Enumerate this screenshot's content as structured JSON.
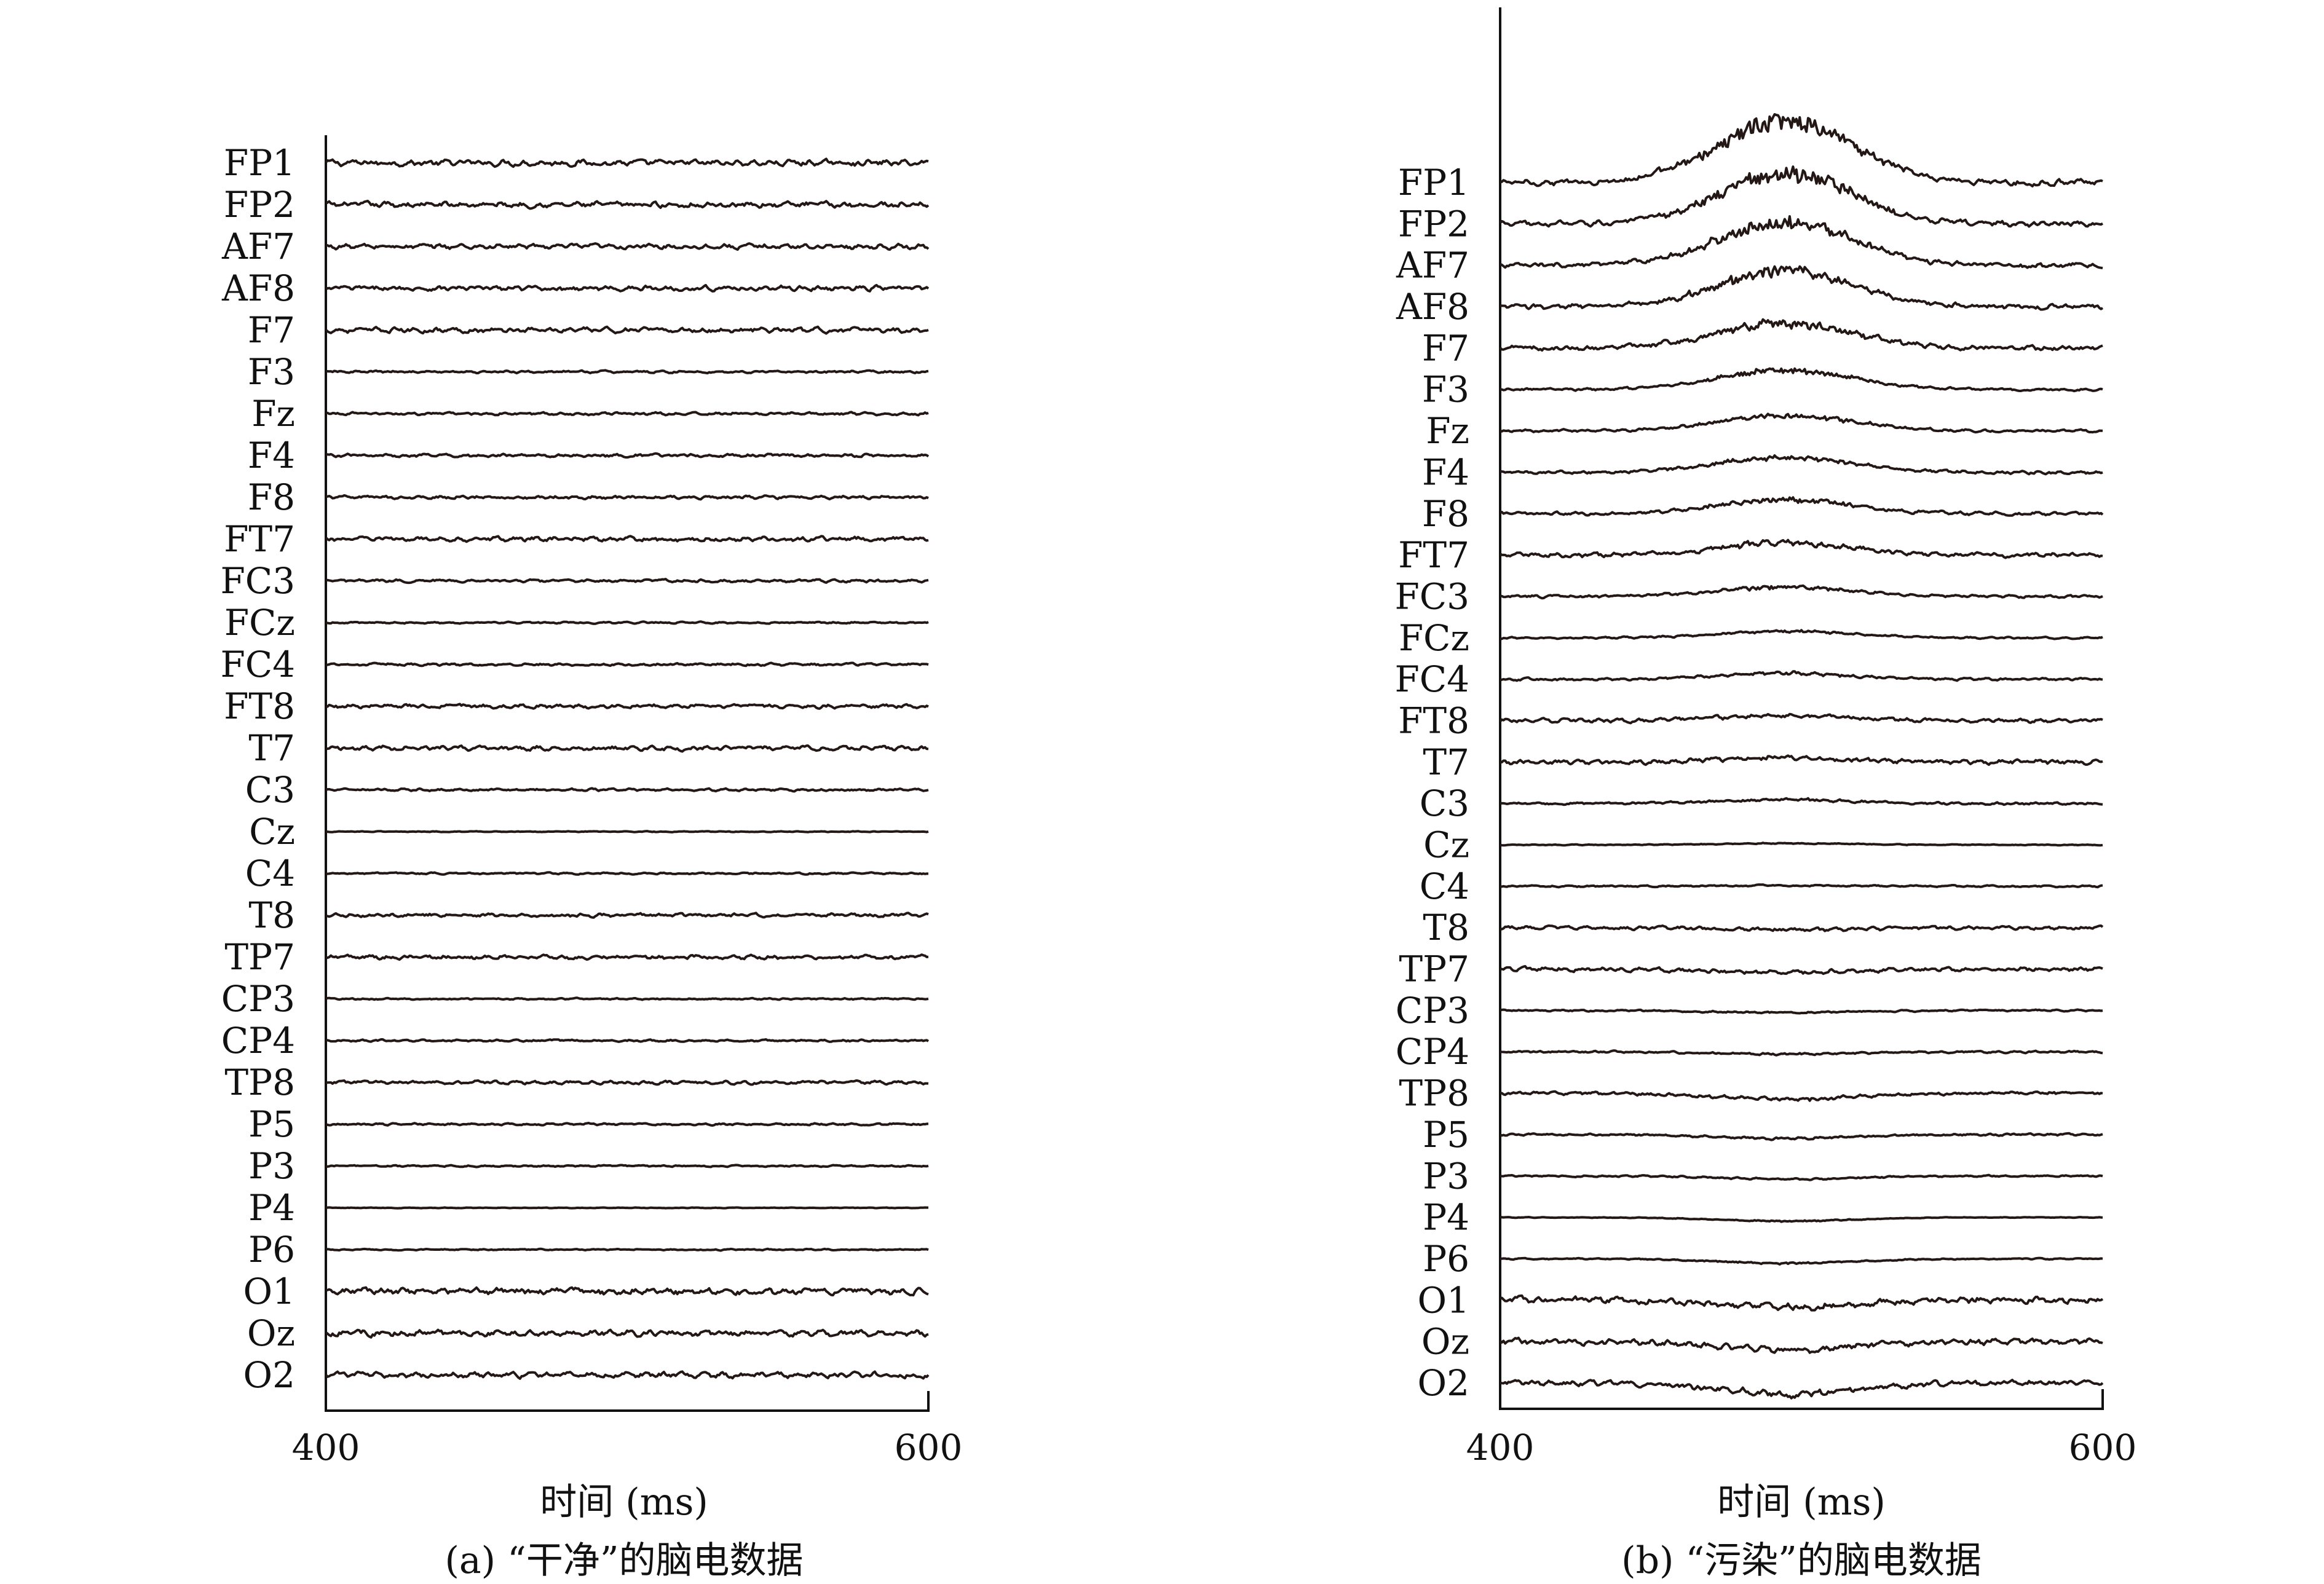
{
  "chart_data": [
    {
      "type": "line",
      "subtype": "stacked-eeg-traces",
      "caption": "(a) “干净”的脑电数据",
      "xlabel": "时间 (ms)",
      "xlim": [
        400,
        600
      ],
      "xticks": [
        "400",
        "600"
      ],
      "channels": [
        "FP1",
        "FP2",
        "AF7",
        "AF8",
        "F7",
        "F3",
        "Fz",
        "F4",
        "F8",
        "FT7",
        "FC3",
        "FCz",
        "FC4",
        "FT8",
        "T7",
        "C3",
        "Cz",
        "C4",
        "T8",
        "TP7",
        "CP3",
        "CP4",
        "TP8",
        "P5",
        "P3",
        "P4",
        "P6",
        "O1",
        "Oz",
        "O2"
      ],
      "artifact": {
        "present": false,
        "center_ms": null
      },
      "channel_noise": [
        0.55,
        0.5,
        0.45,
        0.45,
        0.45,
        0.22,
        0.25,
        0.28,
        0.3,
        0.42,
        0.25,
        0.16,
        0.22,
        0.35,
        0.42,
        0.22,
        0.08,
        0.15,
        0.32,
        0.38,
        0.15,
        0.18,
        0.3,
        0.18,
        0.15,
        0.06,
        0.12,
        0.6,
        0.55,
        0.5
      ],
      "artifact_amplitude": [
        0,
        0,
        0,
        0,
        0,
        0,
        0,
        0,
        0,
        0,
        0,
        0,
        0,
        0,
        0,
        0,
        0,
        0,
        0,
        0,
        0,
        0,
        0,
        0,
        0,
        0,
        0,
        0,
        0,
        0
      ]
    },
    {
      "type": "line",
      "subtype": "stacked-eeg-traces",
      "caption": "(b) “污染”的脑电数据",
      "xlabel": "时间 (ms)",
      "xlim": [
        400,
        600
      ],
      "xticks": [
        "400",
        "600"
      ],
      "channels": [
        "FP1",
        "FP2",
        "AF7",
        "AF8",
        "F7",
        "F3",
        "Fz",
        "F4",
        "F8",
        "FT7",
        "FC3",
        "FCz",
        "FC4",
        "FT8",
        "T7",
        "C3",
        "Cz",
        "C4",
        "T8",
        "TP7",
        "CP3",
        "CP4",
        "TP8",
        "P5",
        "P3",
        "P4",
        "P6",
        "O1",
        "Oz",
        "O2"
      ],
      "artifact": {
        "present": true,
        "center_ms": 495,
        "width_ms": 22
      },
      "channel_noise": [
        0.55,
        0.5,
        0.45,
        0.45,
        0.45,
        0.22,
        0.25,
        0.28,
        0.3,
        0.42,
        0.25,
        0.16,
        0.22,
        0.35,
        0.42,
        0.22,
        0.08,
        0.15,
        0.32,
        0.38,
        0.15,
        0.18,
        0.3,
        0.18,
        0.15,
        0.06,
        0.12,
        0.6,
        0.55,
        0.5
      ],
      "artifact_amplitude": [
        8.4,
        6.8,
        5.8,
        4.9,
        3.4,
        2.6,
        2.1,
        2.0,
        1.9,
        1.7,
        1.3,
        0.9,
        0.8,
        0.7,
        0.6,
        0.5,
        0.2,
        0.1,
        -0.3,
        -0.4,
        -0.3,
        -0.3,
        -0.8,
        -0.5,
        -0.4,
        -0.5,
        -0.6,
        -0.9,
        -1.1,
        -1.5
      ]
    }
  ]
}
